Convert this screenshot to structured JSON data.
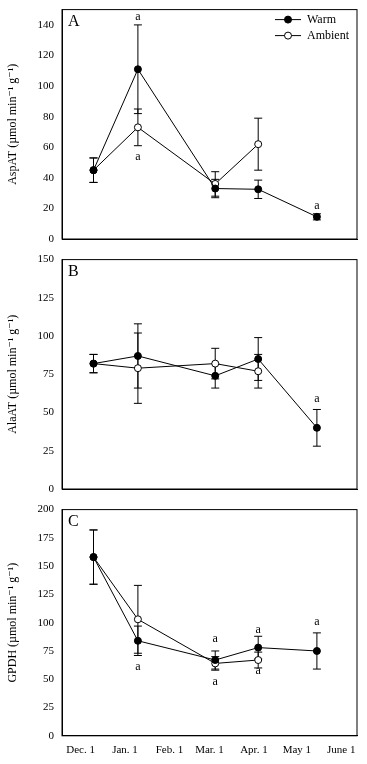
{
  "chart_data": [
    {
      "type": "line",
      "title": "A",
      "y_label": "AspAT (µmol min⁻¹ g⁻¹)",
      "x": [
        9,
        40,
        94,
        124,
        165
      ],
      "xlim": [
        -13,
        193
      ],
      "xticks": [
        {
          "value": 0,
          "label": "Dec. 1"
        },
        {
          "value": 31,
          "label": "Jan. 1"
        },
        {
          "value": 62,
          "label": "Feb. 1"
        },
        {
          "value": 90,
          "label": "Mar. 1"
        },
        {
          "value": 121,
          "label": "Apr. 1"
        },
        {
          "value": 151,
          "label": "May 1"
        },
        {
          "value": 182,
          "label": "June 1"
        }
      ],
      "ylim": [
        0,
        150
      ],
      "yticks": [
        0,
        20,
        40,
        60,
        80,
        100,
        120,
        140
      ],
      "grid": false,
      "legend": "upper right",
      "tick_labels": "y",
      "series": [
        {
          "name": "Warm",
          "color": "#000000",
          "marker": "circle",
          "values": [
            45,
            111,
            33,
            32.5,
            14.5
          ],
          "error": [
            8,
            29,
            6,
            6,
            2
          ]
        },
        {
          "name": "Ambient",
          "color": "#000000",
          "marker": "open_circle",
          "values": [
            45,
            73,
            36,
            62,
            null
          ],
          "error": [
            8,
            12,
            8,
            17,
            null
          ]
        }
      ],
      "annotations": [
        {
          "text": "a",
          "x": 40,
          "y": 145
        },
        {
          "text": "a",
          "x": 40,
          "y": 54
        },
        {
          "text": "a",
          "x": 165,
          "y": 22
        }
      ]
    },
    {
      "type": "line",
      "title": "B",
      "y_label": "AlaAT (µmol min⁻¹ g⁻¹)",
      "x": [
        9,
        40,
        94,
        124,
        165
      ],
      "xlim": [
        -13,
        193
      ],
      "xticks": [
        {
          "value": 0,
          "label": "Dec. 1"
        },
        {
          "value": 31,
          "label": "Jan. 1"
        },
        {
          "value": 62,
          "label": "Feb. 1"
        },
        {
          "value": 90,
          "label": "Mar. 1"
        },
        {
          "value": 121,
          "label": "Apr. 1"
        },
        {
          "value": 151,
          "label": "May 1"
        },
        {
          "value": 182,
          "label": "June 1"
        }
      ],
      "ylim": [
        0,
        150
      ],
      "yticks": [
        0,
        25,
        50,
        75,
        100,
        125,
        150
      ],
      "grid": false,
      "tick_labels": "y",
      "series": [
        {
          "name": "Warm",
          "color": "#000000",
          "marker": "circle",
          "values": [
            82,
            87,
            74,
            85,
            40
          ],
          "error": [
            6,
            21,
            8,
            14,
            12
          ]
        },
        {
          "name": "Ambient",
          "color": "#000000",
          "marker": "open_circle",
          "values": [
            82,
            79,
            82,
            77,
            null
          ],
          "error": [
            6,
            23,
            10,
            11,
            null
          ]
        }
      ],
      "annotations": [
        {
          "text": "a",
          "x": 165,
          "y": 59
        }
      ]
    },
    {
      "type": "line",
      "title": "C",
      "y_label": "GPDH (µmol min⁻¹ g⁻¹)",
      "x": [
        9,
        40,
        94,
        124,
        165
      ],
      "xlim": [
        -13,
        193
      ],
      "xticks": [
        {
          "value": 0,
          "label": "Dec. 1"
        },
        {
          "value": 31,
          "label": "Jan. 1"
        },
        {
          "value": 62,
          "label": "Feb. 1"
        },
        {
          "value": 90,
          "label": "Mar. 1"
        },
        {
          "value": 121,
          "label": "Apr. 1"
        },
        {
          "value": 151,
          "label": "May 1"
        },
        {
          "value": 182,
          "label": "June 1"
        }
      ],
      "ylim": [
        0,
        200
      ],
      "yticks": [
        0,
        25,
        50,
        75,
        100,
        125,
        150,
        175,
        200
      ],
      "grid": false,
      "series": [
        {
          "name": "Warm",
          "color": "#000000",
          "marker": "circle",
          "values": [
            158,
            84,
            67,
            78,
            75
          ],
          "error": [
            24,
            13,
            8,
            10,
            16
          ]
        },
        {
          "name": "Ambient",
          "color": "#000000",
          "marker": "open_circle",
          "values": [
            158,
            103,
            64,
            67,
            null
          ],
          "error": [
            24,
            30,
            6,
            7,
            null
          ]
        }
      ],
      "annotations": [
        {
          "text": "a",
          "x": 94,
          "y": 86
        },
        {
          "text": "a",
          "x": 94,
          "y": 48
        },
        {
          "text": "a",
          "x": 124,
          "y": 94
        },
        {
          "text": "a",
          "x": 124,
          "y": 57
        },
        {
          "text": "a",
          "x": 165,
          "y": 101
        },
        {
          "text": "a",
          "x": 40,
          "y": 61
        }
      ]
    }
  ]
}
